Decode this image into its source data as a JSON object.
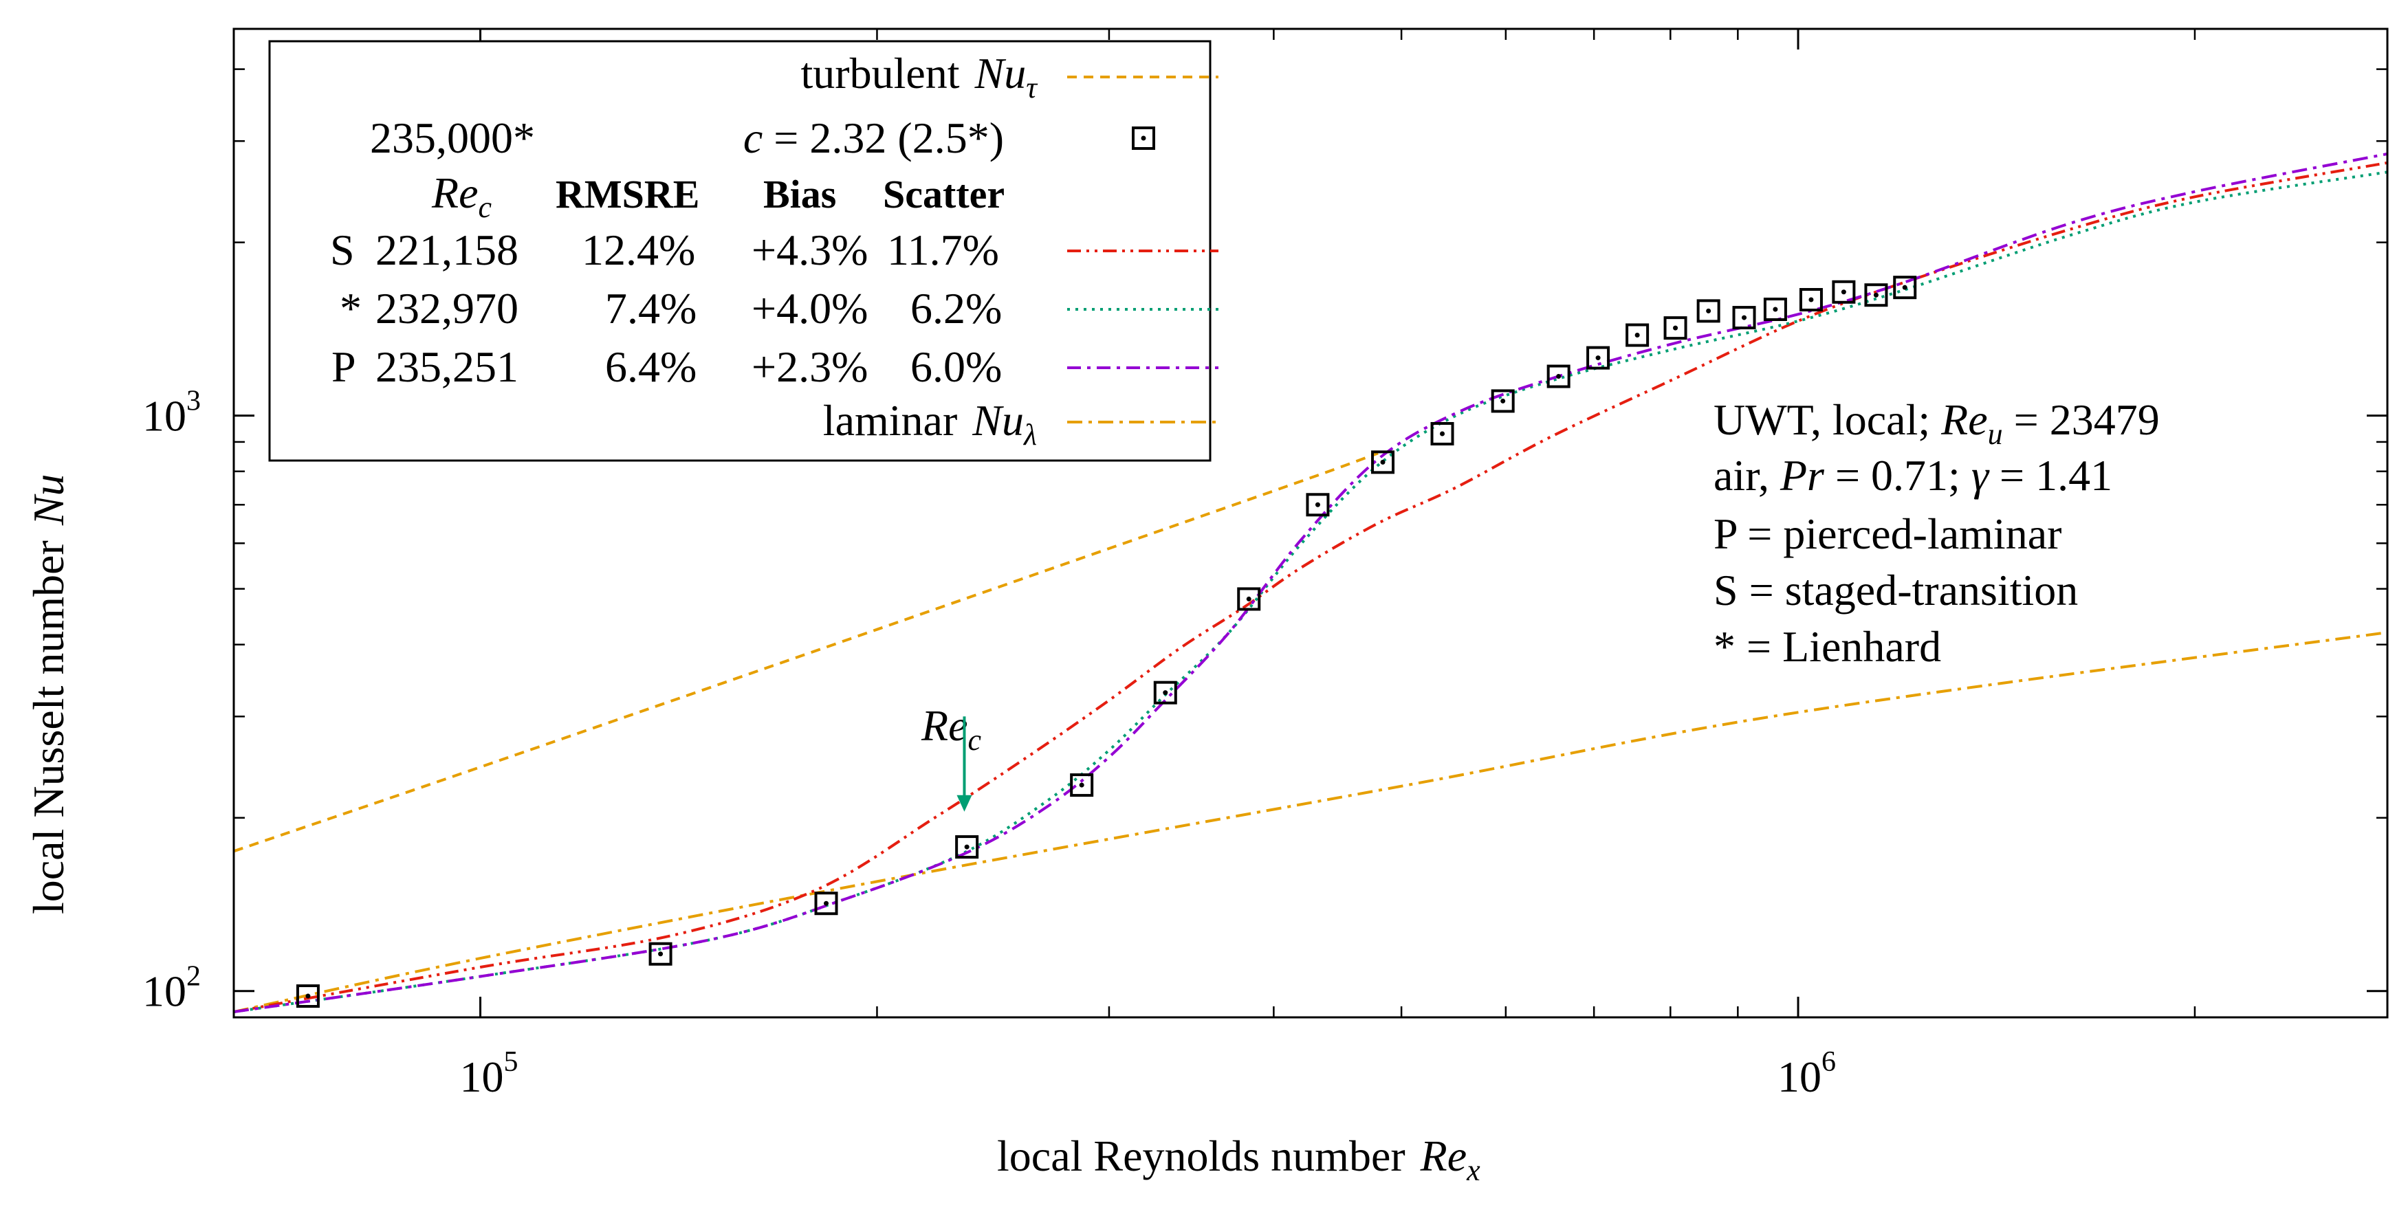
{
  "chart_data": {
    "type": "line",
    "xscale": "log",
    "yscale": "log",
    "xlim": [
      65000,
      2800000
    ],
    "ylim": [
      90,
      4700
    ],
    "xlabel": "local Reynolds number",
    "xlabel_var": "Re",
    "xlabel_sub": "x",
    "ylabel": "local Nusselt number",
    "ylabel_var": "Nu",
    "x_ticks": [
      {
        "value": 100000,
        "base": "10",
        "exp": "5"
      },
      {
        "value": 1000000,
        "base": "10",
        "exp": "6"
      }
    ],
    "y_ticks": [
      {
        "value": 100,
        "base": "10",
        "exp": "2"
      },
      {
        "value": 1000,
        "base": "10",
        "exp": "3"
      }
    ],
    "minor_x_ticks": [
      200000,
      300000,
      400000,
      500000,
      600000,
      700000,
      800000,
      900000,
      2000000
    ],
    "minor_y_ticks": [
      200,
      300,
      400,
      500,
      600,
      700,
      800,
      900,
      2000,
      3000,
      4000
    ],
    "series": [
      {
        "name": "turbulent Nu_tau",
        "style": "dashed",
        "color": "#e69f00",
        "x": [
          65000,
          100000,
          200000,
          400000,
          480000
        ],
        "y": [
          175,
          245,
          425,
          740,
          860
        ]
      },
      {
        "name": "laminar Nu_lambda",
        "style": "dashdot",
        "color": "#e69f00",
        "x": [
          65000,
          100000,
          200000,
          500000,
          1000000,
          2800000
        ],
        "y": [
          92,
          114,
          155,
          227,
          305,
          420
        ]
      },
      {
        "name": "S 221,158",
        "style": "dashdotdot",
        "color": "#e51e10",
        "x": [
          65000,
          100000,
          140000,
          180000,
          221158,
          260000,
          300000,
          340000,
          380000,
          420000,
          480000,
          550000,
          650000,
          800000,
          1000000,
          1200000,
          1600000,
          2000000,
          2800000
        ],
        "y": [
          92,
          110,
          125,
          150,
          200,
          255,
          320,
          395,
          465,
          545,
          650,
          750,
          920,
          1150,
          1460,
          1700,
          2100,
          2400,
          2750
        ]
      },
      {
        "name": "* 232,970",
        "style": "dotted",
        "color": "#009e73",
        "x": [
          65000,
          100000,
          150000,
          190000,
          232970,
          270000,
          300000,
          330000,
          370000,
          420000,
          480000,
          550000,
          650000,
          800000,
          1000000,
          1200000,
          1600000,
          2000000,
          2800000
        ],
        "y": [
          92,
          106,
          123,
          145,
          174,
          215,
          262,
          325,
          420,
          600,
          820,
          1000,
          1150,
          1300,
          1460,
          1650,
          2050,
          2350,
          2650
        ]
      },
      {
        "name": "P 235,251",
        "style": "dashdot",
        "color": "#9400d3",
        "x": [
          65000,
          100000,
          150000,
          190000,
          235251,
          270000,
          300000,
          330000,
          370000,
          420000,
          480000,
          550000,
          650000,
          800000,
          1000000,
          1200000,
          1600000,
          2000000,
          2800000
        ],
        "y": [
          92,
          106,
          123,
          145,
          175,
          210,
          255,
          318,
          420,
          610,
          840,
          1010,
          1160,
          1330,
          1500,
          1700,
          2150,
          2450,
          2850
        ]
      },
      {
        "name": "235,000*",
        "style": "markers",
        "color": "#000000",
        "x": [
          74000,
          137000,
          183000,
          234000,
          286000,
          331000,
          383000,
          432000,
          484000,
          537000,
          597000,
          658000,
          705000,
          755000,
          807000,
          855000,
          910000,
          961000,
          1023000,
          1083000,
          1146000,
          1205000
        ],
        "y": [
          98,
          116,
          142,
          178,
          228,
          330,
          480,
          700,
          830,
          930,
          1060,
          1170,
          1260,
          1380,
          1420,
          1520,
          1480,
          1530,
          1590,
          1640,
          1620,
          1670
        ]
      }
    ],
    "legend": {
      "placement": "top-left",
      "turbulent_label": "turbulent",
      "turbulent_var": "Nu",
      "turbulent_sub": "τ",
      "marker_label": "235,000*",
      "marker_c_var": "c",
      "marker_c_text": " = 2.32 (2.5*)",
      "header_var": "Re",
      "header_sub": "c",
      "header_cols": [
        "RMSRE",
        "Bias",
        "Scatter"
      ],
      "rows": [
        {
          "id": "S",
          "rec": "221,158",
          "rmsre": "12.4%",
          "bias": "+4.3%",
          "scatter": "11.7%"
        },
        {
          "id": "*",
          "rec": "232,970",
          "rmsre": "7.4%",
          "bias": "+4.0%",
          "scatter": "6.2%"
        },
        {
          "id": "P",
          "rec": "235,251",
          "rmsre": "6.4%",
          "bias": "+2.3%",
          "scatter": "6.0%"
        }
      ],
      "laminar_label": "laminar",
      "laminar_var": "Nu",
      "laminar_sub": "λ"
    },
    "annotations": {
      "line1_pre": "UWT, local; ",
      "line1_var": "Re",
      "line1_sub": "u",
      "line1_post": " = 23479",
      "line2_pre": "air, ",
      "line2_var": "Pr",
      "line2_mid": " = 0.71; ",
      "line2_var2": "γ",
      "line2_post": " = 1.41",
      "line3": "P = pierced-laminar",
      "line4": "S = staged-transition",
      "line5": "* = Lienhard",
      "arrow_var": "Re",
      "arrow_sub": "c",
      "arrow_x": 232970,
      "arrow_y_from": 300,
      "arrow_y_to": 205
    }
  }
}
